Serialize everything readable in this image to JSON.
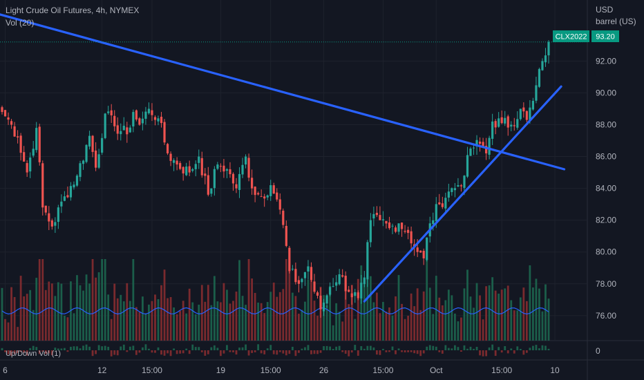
{
  "header": {
    "title": "Light Crude Oil Futures, 4h, NYMEX",
    "volume_label": "Vol (20)",
    "updown_label": "Up/Down Vol (1)"
  },
  "price_axis": {
    "currency": "USD",
    "unit": "barrel (US)",
    "ticks": [
      "76.00",
      "78.00",
      "80.00",
      "82.00",
      "84.00",
      "86.00",
      "88.00",
      "90.00",
      "92.00"
    ],
    "updown_zero": "0"
  },
  "last_price": {
    "symbol": "CLX2022",
    "value": "93.20"
  },
  "time_axis": {
    "ticks": [
      "6",
      "12",
      "15:00",
      "19",
      "15:00",
      "26",
      "15:00",
      "Oct",
      "15:00",
      "10"
    ]
  },
  "colors": {
    "background": "#131722",
    "up": "#26a69a",
    "down": "#ef5350",
    "trendline": "#2962ff",
    "volume_ma": "#2962ff",
    "text": "#b2b5be",
    "last_price_badge": "#089981"
  },
  "chart_data": {
    "type": "candlestick",
    "interval": "4h",
    "y_range": [
      75.2,
      94.3
    ],
    "x_ticks": [
      "6",
      "12",
      "15:00",
      "19",
      "15:00",
      "26",
      "15:00",
      "Oct",
      "15:00",
      "10"
    ],
    "anchors": [
      {
        "i": 0,
        "close": 88.8
      },
      {
        "i": 3,
        "close": 88.0
      },
      {
        "i": 5,
        "close": 87.2
      },
      {
        "i": 8,
        "close": 85.0
      },
      {
        "i": 11,
        "close": 87.8
      },
      {
        "i": 13,
        "close": 82.8
      },
      {
        "i": 16,
        "close": 81.6
      },
      {
        "i": 20,
        "close": 83.5
      },
      {
        "i": 24,
        "close": 84.8
      },
      {
        "i": 28,
        "close": 87.3
      },
      {
        "i": 30,
        "close": 85.3
      },
      {
        "i": 33,
        "close": 88.7
      },
      {
        "i": 36,
        "close": 87.9
      },
      {
        "i": 40,
        "close": 87.4
      },
      {
        "i": 42,
        "close": 88.8
      },
      {
        "i": 44,
        "close": 88.0
      },
      {
        "i": 47,
        "close": 89.0
      },
      {
        "i": 50,
        "close": 88.4
      },
      {
        "i": 53,
        "close": 86.2
      },
      {
        "i": 56,
        "close": 85.5
      },
      {
        "i": 60,
        "close": 85.0
      },
      {
        "i": 63,
        "close": 86.0
      },
      {
        "i": 66,
        "close": 83.6
      },
      {
        "i": 69,
        "close": 85.5
      },
      {
        "i": 72,
        "close": 85.2
      },
      {
        "i": 75,
        "close": 84.0
      },
      {
        "i": 78,
        "close": 86.0
      },
      {
        "i": 80,
        "close": 84.0
      },
      {
        "i": 83,
        "close": 83.5
      },
      {
        "i": 86,
        "close": 84.2
      },
      {
        "i": 88,
        "close": 83.3
      },
      {
        "i": 90,
        "close": 81.7
      },
      {
        "i": 92,
        "close": 78.8
      },
      {
        "i": 95,
        "close": 78.0
      },
      {
        "i": 98,
        "close": 79.1
      },
      {
        "i": 100,
        "close": 77.5
      },
      {
        "i": 102,
        "close": 76.4
      },
      {
        "i": 105,
        "close": 77.8
      },
      {
        "i": 108,
        "close": 78.6
      },
      {
        "i": 111,
        "close": 77.5
      },
      {
        "i": 114,
        "close": 77.1
      },
      {
        "i": 116,
        "close": 78.4
      },
      {
        "i": 118,
        "close": 82.0
      },
      {
        "i": 121,
        "close": 82.0
      },
      {
        "i": 124,
        "close": 81.5
      },
      {
        "i": 127,
        "close": 81.8
      },
      {
        "i": 130,
        "close": 81.2
      },
      {
        "i": 133,
        "close": 80.0
      },
      {
        "i": 135,
        "close": 79.6
      },
      {
        "i": 137,
        "close": 81.8
      },
      {
        "i": 140,
        "close": 83.0
      },
      {
        "i": 143,
        "close": 83.8
      },
      {
        "i": 146,
        "close": 84.2
      },
      {
        "i": 148,
        "close": 84.8
      },
      {
        "i": 150,
        "close": 86.5
      },
      {
        "i": 153,
        "close": 86.8
      },
      {
        "i": 155,
        "close": 86.2
      },
      {
        "i": 157,
        "close": 88.2
      },
      {
        "i": 160,
        "close": 88.1
      },
      {
        "i": 163,
        "close": 88.0
      },
      {
        "i": 166,
        "close": 89.0
      },
      {
        "i": 168,
        "close": 88.3
      },
      {
        "i": 170,
        "close": 89.5
      },
      {
        "i": 173,
        "close": 92.0
      },
      {
        "i": 175,
        "close": 93.2
      }
    ],
    "trendlines": [
      {
        "from": {
          "i": -2,
          "price": 95.0
        },
        "to": {
          "i": 180,
          "price": 85.2
        }
      },
      {
        "from": {
          "i": 116,
          "price": 76.9
        },
        "to": {
          "i": 179,
          "price": 90.4
        }
      }
    ],
    "last": {
      "symbol": "CLX2022",
      "price": 93.2
    }
  }
}
